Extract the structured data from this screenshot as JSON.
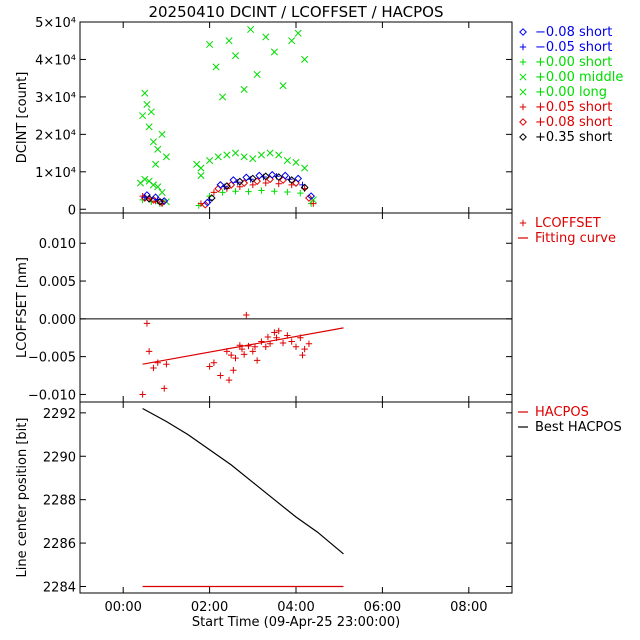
{
  "figure": {
    "title": "20250410 DCINT / LCOFFSET / HACPOS",
    "xlabel": "Start Time (09-Apr-25 23:00:00)",
    "xticks": [
      "00:00",
      "02:00",
      "04:00",
      "06:00",
      "08:00"
    ]
  },
  "colors": {
    "blue": "#0000ee",
    "green": "#00dd00",
    "red": "#dd0000",
    "black": "#000000"
  },
  "chart_data": [
    {
      "type": "scatter",
      "id": "dcint",
      "ylabel": "DCINT [count]",
      "x_unit": "hours after 00:00",
      "xlim": [
        -1,
        9
      ],
      "ylim": [
        -1000,
        50000
      ],
      "yticks": [
        "0",
        "1×10⁴",
        "2×10⁴",
        "3×10⁴",
        "4×10⁴",
        "5×10⁴"
      ],
      "legend": [
        {
          "label": "−0.08 short",
          "symbol": "diamond",
          "color": "#0000ee"
        },
        {
          "label": "−0.05 short",
          "symbol": "plus",
          "color": "#0000ee"
        },
        {
          "label": "+0.00 short",
          "symbol": "plus",
          "color": "#00dd00"
        },
        {
          "label": "+0.00 middle",
          "symbol": "cross",
          "color": "#00dd00"
        },
        {
          "label": "+0.00 long",
          "symbol": "cross",
          "color": "#00dd00"
        },
        {
          "label": "+0.05 short",
          "symbol": "plus",
          "color": "#dd0000"
        },
        {
          "label": "+0.08 short",
          "symbol": "diamond",
          "color": "#dd0000"
        },
        {
          "label": "+0.35 short",
          "symbol": "diamond",
          "color": "#000000"
        }
      ],
      "series": [
        {
          "name": "+0.00 long",
          "symbol": "cross",
          "color": "#00dd00",
          "x": [
            0.45,
            0.5,
            0.55,
            0.6,
            0.65,
            0.7,
            0.75,
            0.8,
            0.9,
            1.0,
            1.7,
            1.8,
            2.0,
            2.15,
            2.3,
            2.45,
            2.6,
            2.8,
            2.95,
            3.1,
            3.3,
            3.5,
            3.7,
            3.9,
            4.05,
            4.2
          ],
          "y": [
            25000,
            31000,
            28000,
            22000,
            26000,
            18000,
            12000,
            16000,
            20000,
            14000,
            12000,
            9000,
            44000,
            38000,
            30000,
            45000,
            41000,
            32000,
            48000,
            36000,
            46000,
            42000,
            33000,
            45000,
            47000,
            40000
          ]
        },
        {
          "name": "+0.00 middle",
          "symbol": "cross",
          "color": "#00dd00",
          "x": [
            0.4,
            0.5,
            0.6,
            0.7,
            0.8,
            0.9,
            1.0,
            1.8,
            2.0,
            2.2,
            2.4,
            2.6,
            2.8,
            3.0,
            3.2,
            3.4,
            3.6,
            3.8,
            4.0,
            4.2,
            4.4
          ],
          "y": [
            7000,
            8000,
            7500,
            6500,
            6000,
            4500,
            2000,
            11000,
            13000,
            14000,
            14500,
            15000,
            14000,
            13500,
            14500,
            15000,
            14500,
            13000,
            12500,
            11000,
            2500
          ]
        },
        {
          "name": "+0.00 short",
          "symbol": "plus",
          "color": "#00dd00",
          "x": [
            0.45,
            0.65,
            0.85,
            1.75,
            2.0,
            2.3,
            2.6,
            2.9,
            3.2,
            3.5,
            3.8,
            4.1,
            4.35
          ],
          "y": [
            2500,
            2000,
            1500,
            1000,
            3500,
            4500,
            4800,
            4700,
            5000,
            4800,
            4600,
            4300,
            1500
          ]
        },
        {
          "name": "+0.05 short",
          "symbol": "plus",
          "color": "#dd0000",
          "x": [
            0.45,
            0.6,
            0.75,
            0.9,
            1.8,
            2.1,
            2.4,
            2.7,
            3.0,
            3.3,
            3.6,
            3.9,
            4.2,
            4.4
          ],
          "y": [
            3500,
            2800,
            2200,
            1500,
            1500,
            4500,
            5500,
            6000,
            6500,
            7000,
            6800,
            6500,
            5500,
            1500
          ]
        },
        {
          "name": "+0.08 short",
          "symbol": "diamond",
          "color": "#dd0000",
          "x": [
            0.5,
            0.7,
            0.9,
            1.9,
            2.2,
            2.5,
            2.8,
            3.1,
            3.4,
            3.7,
            4.0,
            4.3
          ],
          "y": [
            3000,
            2500,
            1800,
            1200,
            5500,
            6500,
            7000,
            7500,
            8000,
            7800,
            7000,
            3000
          ]
        },
        {
          "name": "−0.08 short",
          "symbol": "diamond",
          "color": "#0000ee",
          "x": [
            0.55,
            0.75,
            0.95,
            1.95,
            2.25,
            2.55,
            2.85,
            3.15,
            3.45,
            3.75,
            4.05,
            4.35
          ],
          "y": [
            3800,
            3200,
            2200,
            1800,
            6500,
            7800,
            8500,
            9000,
            9200,
            9000,
            8200,
            3500
          ]
        },
        {
          "name": "−0.05 short",
          "symbol": "plus",
          "color": "#0000ee",
          "x": [
            0.5,
            0.8,
            2.0,
            2.35,
            2.65,
            2.95,
            3.25,
            3.55,
            3.85,
            4.15
          ],
          "y": [
            3200,
            2600,
            2500,
            6000,
            7200,
            8000,
            8600,
            8800,
            8000,
            6500
          ]
        },
        {
          "name": "+0.35 short",
          "symbol": "diamond",
          "color": "#000000",
          "x": [
            0.6,
            0.85,
            2.05,
            2.4,
            2.7,
            3.0,
            3.3,
            3.6,
            3.9,
            4.2
          ],
          "y": [
            2800,
            2000,
            3000,
            6200,
            7400,
            8200,
            8800,
            8600,
            7800,
            5800
          ]
        }
      ]
    },
    {
      "type": "scatter",
      "id": "lcoffset",
      "ylabel": "LCOFFSET [nm]",
      "xlim": [
        -1,
        9
      ],
      "ylim": [
        -0.011,
        0.014
      ],
      "yticks": [
        "−0.010",
        "−0.005",
        "0.000",
        "0.005",
        "0.010"
      ],
      "legend": [
        {
          "label": "LCOFFSET",
          "symbol": "plus",
          "color": "#dd0000"
        },
        {
          "label": "Fitting curve",
          "symbol": "line",
          "color": "#dd0000"
        }
      ],
      "series": [
        {
          "name": "LCOFFSET",
          "symbol": "plus",
          "color": "#dd0000",
          "x": [
            0.45,
            0.55,
            0.6,
            0.7,
            0.8,
            0.95,
            1.0,
            2.0,
            2.1,
            2.25,
            2.4,
            2.45,
            2.5,
            2.55,
            2.6,
            2.7,
            2.75,
            2.8,
            2.85,
            2.9,
            3.0,
            3.05,
            3.1,
            3.2,
            3.3,
            3.35,
            3.4,
            3.5,
            3.55,
            3.6,
            3.7,
            3.8,
            3.9,
            4.0,
            4.1,
            4.15,
            4.2,
            4.3
          ],
          "y": [
            -0.01,
            -0.0006,
            -0.0043,
            -0.0065,
            -0.0058,
            -0.0092,
            -0.006,
            -0.0063,
            -0.0058,
            -0.0075,
            -0.0043,
            -0.0081,
            -0.0048,
            -0.0068,
            -0.0052,
            -0.0035,
            -0.004,
            -0.0047,
            0.0005,
            -0.0036,
            -0.0043,
            -0.0037,
            -0.0055,
            -0.003,
            -0.0037,
            -0.0024,
            -0.0033,
            -0.0018,
            -0.0025,
            -0.0016,
            -0.0032,
            -0.0022,
            -0.003,
            -0.0037,
            -0.0025,
            -0.0048,
            -0.004,
            -0.0033
          ]
        },
        {
          "name": "Fitting curve",
          "symbol": "line",
          "color": "#dd0000",
          "x": [
            0.45,
            5.1
          ],
          "y": [
            -0.006,
            -0.0012
          ]
        }
      ]
    },
    {
      "type": "line",
      "id": "hacpos",
      "ylabel": "Line center position [bit]",
      "xlim": [
        -1,
        9
      ],
      "ylim": [
        2283.7,
        2292.5
      ],
      "yticks": [
        "2284",
        "2286",
        "2288",
        "2290",
        "2292"
      ],
      "legend": [
        {
          "label": "HACPOS",
          "symbol": "line",
          "color": "#dd0000"
        },
        {
          "label": "Best HACPOS",
          "symbol": "line",
          "color": "#000000"
        }
      ],
      "series": [
        {
          "name": "HACPOS",
          "color": "#dd0000",
          "x": [
            0.45,
            5.1
          ],
          "y": [
            2284,
            2284
          ]
        },
        {
          "name": "Best HACPOS",
          "color": "#000000",
          "x": [
            0.45,
            1.0,
            1.5,
            2.0,
            2.5,
            3.0,
            3.5,
            4.0,
            4.5,
            5.1
          ],
          "y": [
            2292.2,
            2291.6,
            2291.0,
            2290.3,
            2289.6,
            2288.8,
            2288.0,
            2287.2,
            2286.5,
            2285.5
          ]
        }
      ]
    }
  ]
}
